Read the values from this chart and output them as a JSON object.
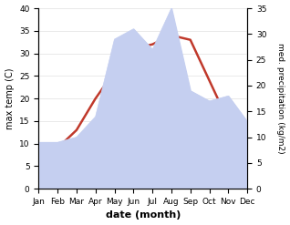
{
  "months": [
    "Jan",
    "Feb",
    "Mar",
    "Apr",
    "May",
    "Jun",
    "Jul",
    "Aug",
    "Sep",
    "Oct",
    "Nov",
    "Dec"
  ],
  "temp": [
    7,
    9,
    13,
    20,
    26,
    31,
    32,
    34,
    33,
    24,
    15,
    10
  ],
  "precip": [
    9,
    9,
    10,
    14,
    29,
    31,
    27,
    35,
    19,
    17,
    18,
    13
  ],
  "temp_color": "#c0392b",
  "precip_fill_color": "#c5cff0",
  "precip_line_color": "#c5cff0",
  "temp_ylim": [
    0,
    40
  ],
  "precip_ylim": [
    0,
    35
  ],
  "xlabel": "date (month)",
  "ylabel_left": "max temp (C)",
  "ylabel_right": "med. precipitation (kg/m2)",
  "bg_color": "#ffffff",
  "grid_color": "#e0e0e0"
}
